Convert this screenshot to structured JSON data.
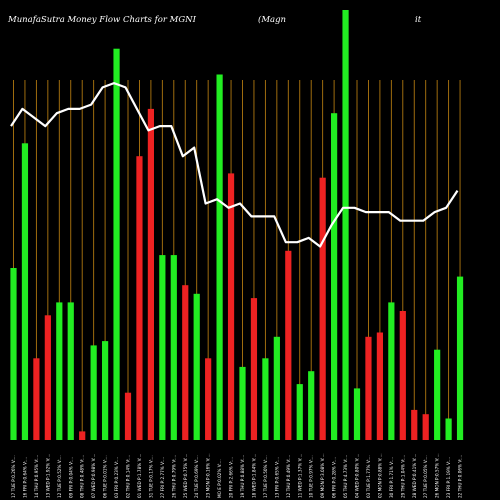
{
  "chart_data": {
    "type": "bar",
    "title_left": "MunafaSutra  Money Flow  Charts for MGNI",
    "title_mid": "(Magn",
    "title_right": "it",
    "series": [
      {
        "name": "",
        "kind": "bar",
        "values": [
          0.4,
          0.69,
          0.19,
          0.29,
          0.32,
          0.32,
          0.02,
          0.22,
          0.23,
          0.91,
          0.11,
          0.66,
          0.77,
          0.43,
          0.43,
          0.36,
          0.34,
          0.19,
          0.85,
          0.62,
          0.17,
          0.33,
          0.19,
          0.24,
          0.44,
          0.13,
          0.16,
          0.61,
          0.76,
          1.0,
          0.12,
          0.24,
          0.25,
          0.32,
          0.3,
          0.07,
          0.06,
          0.21,
          0.05,
          0.38
        ]
      },
      {
        "name": "",
        "kind": "line",
        "values": [
          0.73,
          0.77,
          0.75,
          0.73,
          0.76,
          0.77,
          0.77,
          0.78,
          0.82,
          0.83,
          0.82,
          0.77,
          0.72,
          0.73,
          0.73,
          0.66,
          0.68,
          0.55,
          0.56,
          0.54,
          0.55,
          0.52,
          0.52,
          0.52,
          0.46,
          0.46,
          0.47,
          0.45,
          0.5,
          0.54,
          0.54,
          0.53,
          0.53,
          0.53,
          0.51,
          0.51,
          0.51,
          0.53,
          0.54,
          0.58
        ]
      }
    ],
    "bar_colors": [
      "#22ee22",
      "#22ee22",
      "#ee2222",
      "#ee2222",
      "#22ee22",
      "#22ee22",
      "#ee2222",
      "#22ee22",
      "#22ee22",
      "#22ee22",
      "#ee2222",
      "#ee2222",
      "#ee2222",
      "#22ee22",
      "#22ee22",
      "#ee2222",
      "#22ee22",
      "#ee2222",
      "#22ee22",
      "#ee2222",
      "#22ee22",
      "#ee2222",
      "#22ee22",
      "#22ee22",
      "#ee2222",
      "#22ee22",
      "#22ee22",
      "#ee2222",
      "#22ee22",
      "#22ee22",
      "#22ee22",
      "#ee2222",
      "#ee2222",
      "#22ee22",
      "#ee2222",
      "#ee2222",
      "#ee2222",
      "#22ee22",
      "#22ee22",
      "#22ee22"
    ],
    "categories": [
      "17 TUE P:0.26% V:...",
      "16 FRI P:0.64% V:...",
      "14 THU P:0.95% V:...",
      "13 WED P:1.92% V:...",
      "12 TUE P:0.52% V:...",
      "09 FRI P:0.04% V:...",
      "08 THU P:0.48% V:...",
      "07 WED P:0.98% V:...",
      "06 TUE P:0.01% V:...",
      "03 FRI P:0.23% V:...",
      "02 THU P:0.14% V:...",
      "01 WED P:1.78% V:...",
      "31 TUE P:0.17% V:...",
      "27 FRI P:2.77% V:...",
      "26 THU P:0.79% V:...",
      "25 WED P:0.75% V:...",
      "24 TUE P:0.69% V:...",
      "23 MON P:0.16% V:...",
      "MO E P:0.02% V:...",
      "20 FRI P:2.66% V:...",
      "19 THU P:0.88% V:...",
      "18 WED P:1.84% V:...",
      "17 TUE P:0.50% V:...",
      "13 FRI P:0.65% V:...",
      "12 THU P:0.49% V:...",
      "11 WED P:1.37% V:...",
      "10 TUE P:0.97% V:...",
      "09 MON P:3.08% V:...",
      "06 FRI P:0.28% V:...",
      "05 THU P:4.73% V:...",
      "04 WED P:0.80% V:...",
      "03 TUE P:1.77% V:...",
      "02 MON P:0.88% V:...",
      "30 FRI P:1.71% V:...",
      "29 THU P:1.04% V:...",
      "28 WED P:0.41% V:...",
      "27 TUE P:0.05% V:...",
      "26 MON P:0.57% V:...",
      "23 FRI P:1.19% V:...",
      "22 THU P:0.06% V:..."
    ],
    "line_color": "#ffffff",
    "grid_color": "#b07810",
    "background": "#000000"
  }
}
